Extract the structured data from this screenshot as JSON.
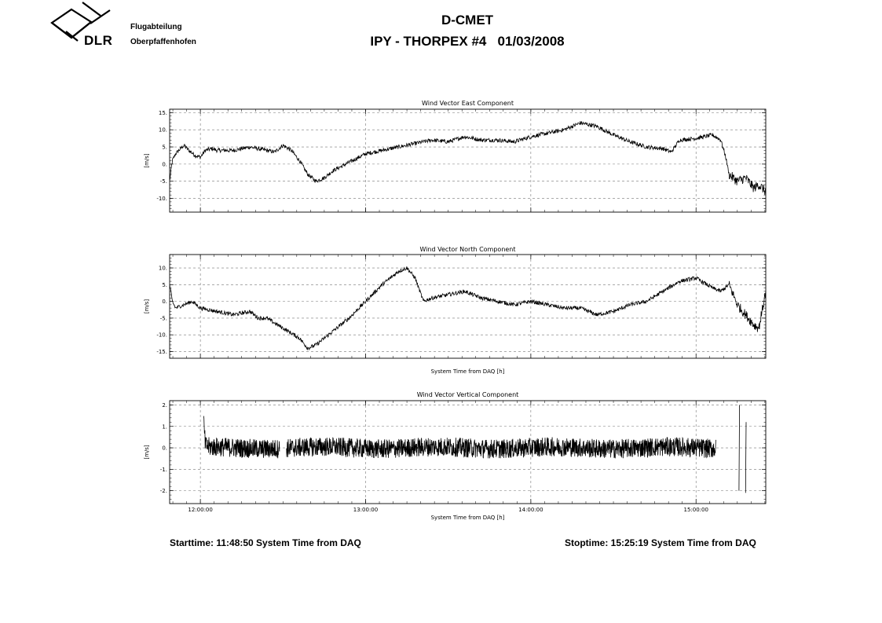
{
  "header": {
    "logo_text": "DLR",
    "institute_line1": "Flugabteilung",
    "institute_line2": "Oberpfaffenhofen",
    "title_line1": "D-CMET",
    "title_line2": "IPY - THORPEX #4   01/03/2008"
  },
  "footer": {
    "start": "Starttime: 11:48:50 System Time from DAQ",
    "stop": "Stoptime: 15:25:19 System Time from DAQ"
  },
  "chart_data": [
    {
      "type": "line",
      "title": "Wind Vector East Component",
      "ylabel": "[m/s]",
      "xlabel": "",
      "xlim": [
        11.814,
        15.422
      ],
      "ylim": [
        -14,
        16
      ],
      "yticks": [
        -10,
        -5,
        0,
        5,
        10,
        15
      ],
      "ytick_labels": [
        "-10.",
        "-5.",
        "0.",
        "5.",
        "10.",
        "15."
      ],
      "xticks": [
        12,
        13,
        14,
        15
      ],
      "xtick_labels": [],
      "grid": true,
      "noise": 0.6,
      "x": [
        11.814,
        11.83,
        11.85,
        11.9,
        11.93,
        11.97,
        12.0,
        12.03,
        12.07,
        12.1,
        12.2,
        12.3,
        12.4,
        12.45,
        12.5,
        12.55,
        12.6,
        12.65,
        12.7,
        12.75,
        12.8,
        12.9,
        13.0,
        13.1,
        13.2,
        13.3,
        13.4,
        13.5,
        13.6,
        13.7,
        13.8,
        13.9,
        14.0,
        14.1,
        14.2,
        14.3,
        14.4,
        14.5,
        14.6,
        14.7,
        14.8,
        14.85,
        14.9,
        15.0,
        15.1,
        15.15,
        15.18,
        15.2,
        15.25,
        15.3,
        15.35,
        15.38,
        15.422
      ],
      "y": [
        -5,
        1,
        3,
        5.5,
        4,
        2.5,
        2,
        4,
        4.5,
        4,
        4,
        5,
        4,
        3.5,
        5.5,
        4,
        1,
        -3,
        -5,
        -4,
        -2,
        0.5,
        3,
        4,
        5,
        6,
        7,
        6.5,
        8,
        7,
        7,
        6.5,
        8,
        9,
        10,
        12,
        11,
        8.5,
        6.5,
        5,
        4.5,
        3.5,
        7,
        7.5,
        8.5,
        7,
        2,
        -3,
        -5,
        -4,
        -7,
        -6,
        -8
      ]
    },
    {
      "type": "line",
      "title": "Wind Vector North Component",
      "ylabel": "[m/s]",
      "xlabel": "System Time from DAQ [h]",
      "xlim": [
        11.814,
        15.422
      ],
      "ylim": [
        -17,
        14
      ],
      "yticks": [
        -15,
        -10,
        -5,
        0,
        5,
        10
      ],
      "ytick_labels": [
        "-15.",
        "-10.",
        "-5.",
        "0.",
        "5.",
        "10."
      ],
      "xticks": [
        12,
        13,
        14,
        15
      ],
      "xtick_labels": [],
      "grid": true,
      "noise": 0.6,
      "x": [
        11.814,
        11.83,
        11.85,
        11.9,
        11.95,
        12.0,
        12.1,
        12.2,
        12.3,
        12.35,
        12.4,
        12.5,
        12.6,
        12.65,
        12.7,
        12.8,
        12.9,
        13.0,
        13.1,
        13.2,
        13.25,
        13.3,
        13.35,
        13.4,
        13.5,
        13.6,
        13.7,
        13.8,
        13.9,
        14.0,
        14.1,
        14.2,
        14.3,
        14.4,
        14.5,
        14.6,
        14.7,
        14.8,
        14.9,
        15.0,
        15.1,
        15.15,
        15.2,
        15.25,
        15.3,
        15.35,
        15.38,
        15.422
      ],
      "y": [
        5,
        0,
        -2,
        -1,
        0,
        -2,
        -3,
        -4,
        -3,
        -5,
        -5,
        -8,
        -11,
        -14,
        -13,
        -9,
        -5,
        0,
        5,
        9,
        10,
        7,
        0,
        1,
        2,
        3,
        1,
        0,
        -1,
        0,
        -1,
        -2,
        -2,
        -4,
        -3,
        -1,
        0,
        3,
        6,
        7,
        4,
        3,
        5,
        -1,
        -4,
        -7,
        -8,
        3
      ]
    },
    {
      "type": "line",
      "title": "Wind Vector Vertical Component",
      "ylabel": "[m/s]",
      "xlabel": "System Time from DAQ [h]",
      "xlim": [
        11.814,
        15.422
      ],
      "ylim": [
        -2.6,
        2.2
      ],
      "yticks": [
        -2,
        -1,
        0,
        1,
        2
      ],
      "ytick_labels": [
        "-2.",
        "-1.",
        "0.",
        "1.",
        "2."
      ],
      "xticks": [
        12,
        13,
        14,
        15
      ],
      "xtick_labels": [
        "12:00:00",
        "13:00:00",
        "14:00:00",
        "15:00:00"
      ],
      "grid": true,
      "noise": 0.45,
      "x": [
        12.02,
        12.03,
        12.48
      ],
      "y": [
        1.2,
        0.1,
        0.1
      ],
      "segments": [
        [
          12.02,
          12.48
        ],
        [
          12.52,
          15.12
        ]
      ],
      "spikes": [
        [
          15.26,
          -2.0,
          2.0
        ],
        [
          15.3,
          -2.1,
          1.2
        ]
      ]
    }
  ]
}
